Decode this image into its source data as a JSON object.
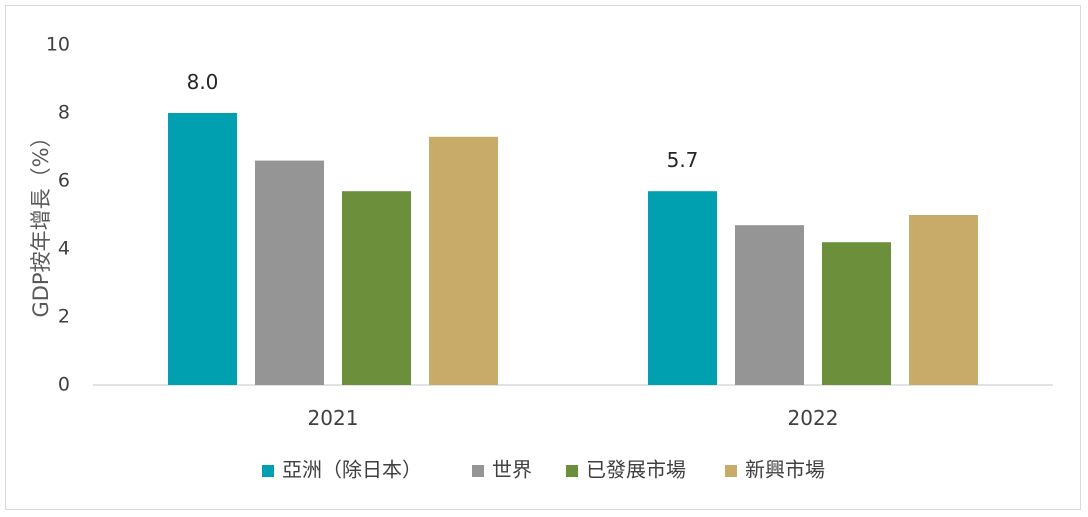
{
  "chart_data": {
    "type": "bar",
    "categories": [
      "2021",
      "2022"
    ],
    "series": [
      {
        "name": "亞洲（除日本）",
        "values": [
          8.0,
          5.7
        ],
        "color": "#00A0B0",
        "data_labels": [
          "8.0",
          "5.7"
        ]
      },
      {
        "name": "世界",
        "values": [
          6.6,
          4.7
        ],
        "color": "#959595",
        "data_labels": [
          "",
          ""
        ]
      },
      {
        "name": "已發展市場",
        "values": [
          5.7,
          4.2
        ],
        "color": "#6B8F3A",
        "data_labels": [
          "",
          ""
        ]
      },
      {
        "name": "新興市場",
        "values": [
          7.3,
          5.0
        ],
        "color": "#C8AB68",
        "data_labels": [
          "",
          ""
        ]
      }
    ],
    "ylabel": "GDP按年增長（%）",
    "xlabel": "",
    "ylim": [
      0,
      10
    ],
    "yticks": [
      "0",
      "2",
      "4",
      "6",
      "8",
      "10"
    ],
    "grid": false,
    "legend_position": "bottom"
  }
}
